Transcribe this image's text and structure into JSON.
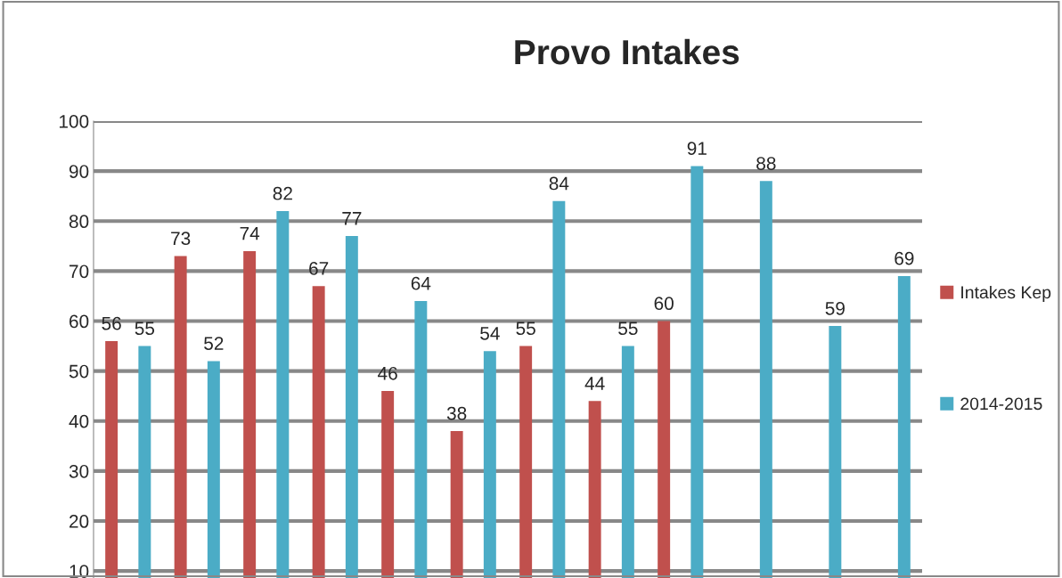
{
  "chart_data": {
    "type": "bar",
    "title": "Provo Intakes",
    "categories": [
      null,
      null,
      null,
      null,
      null,
      null,
      null,
      null,
      null,
      null,
      null,
      null
    ],
    "series": [
      {
        "name": "Intakes Kep",
        "color": "#c0504d",
        "values": [
          56,
          73,
          74,
          67,
          46,
          38,
          55,
          44,
          60,
          null,
          null,
          null
        ]
      },
      {
        "name": "2014-2015",
        "color": "#4bacc6",
        "values": [
          55,
          52,
          82,
          77,
          64,
          54,
          84,
          55,
          91,
          88,
          59,
          69
        ]
      }
    ],
    "ylim": [
      8.6,
      100
    ],
    "yticks": [
      10,
      20,
      30,
      40,
      50,
      60,
      70,
      80,
      90,
      100
    ],
    "grid": "y",
    "legend": "right",
    "data_labels": true,
    "tick_labels": "y"
  }
}
